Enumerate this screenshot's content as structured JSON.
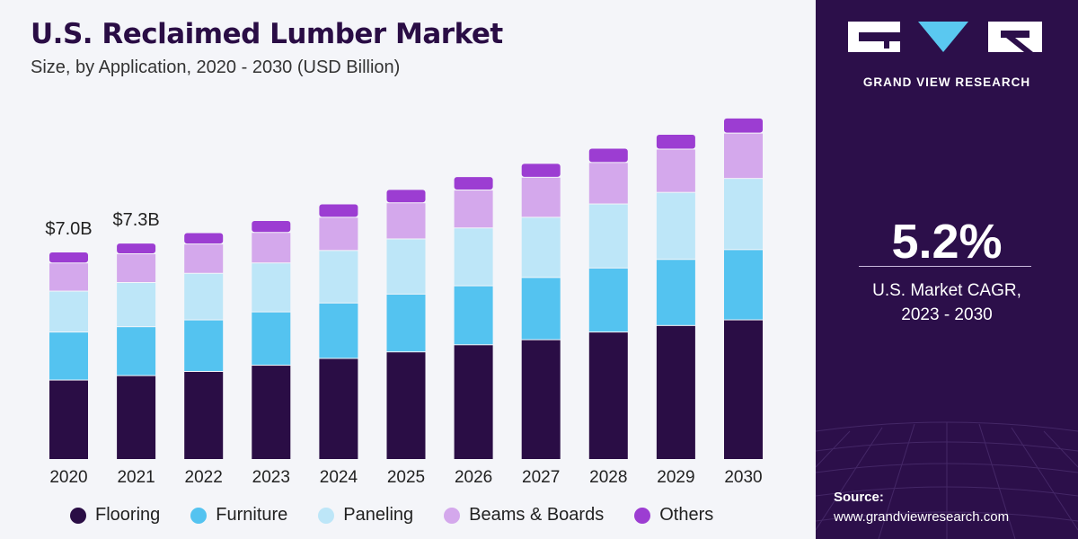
{
  "header": {
    "title": "U.S. Reclaimed Lumber Market",
    "subtitle": "Size, by Application, 2020 - 2030 (USD Billion)"
  },
  "chart_data": {
    "type": "bar",
    "stacked": true,
    "categories": [
      "2020",
      "2021",
      "2022",
      "2023",
      "2024",
      "2025",
      "2026",
      "2027",
      "2028",
      "2029",
      "2030"
    ],
    "series": [
      {
        "name": "Flooring",
        "color": "#2a0d45",
        "values": [
          2.68,
          2.83,
          2.97,
          3.18,
          3.41,
          3.63,
          3.87,
          4.04,
          4.3,
          4.52,
          4.71
        ]
      },
      {
        "name": "Furniture",
        "color": "#54c3f0",
        "values": [
          1.62,
          1.65,
          1.74,
          1.8,
          1.87,
          1.95,
          1.99,
          2.1,
          2.16,
          2.23,
          2.37
        ]
      },
      {
        "name": "Paneling",
        "color": "#bde6f8",
        "values": [
          1.38,
          1.49,
          1.57,
          1.65,
          1.77,
          1.86,
          1.95,
          2.03,
          2.16,
          2.26,
          2.4
        ]
      },
      {
        "name": "Beams & Boards",
        "color": "#d4a8ec",
        "values": [
          0.95,
          0.97,
          0.99,
          1.03,
          1.12,
          1.22,
          1.28,
          1.35,
          1.4,
          1.46,
          1.53
        ]
      },
      {
        "name": "Others",
        "color": "#9c3dd2",
        "values": [
          0.37,
          0.36,
          0.38,
          0.4,
          0.45,
          0.45,
          0.45,
          0.47,
          0.48,
          0.5,
          0.51
        ]
      }
    ],
    "data_labels": [
      {
        "category": "2020",
        "text": "$7.0B"
      },
      {
        "category": "2021",
        "text": "$7.3B"
      }
    ],
    "ylim": [
      0,
      12
    ],
    "grid": false,
    "legend_position": "bottom"
  },
  "sidebar": {
    "brand": "GRAND VIEW RESEARCH",
    "cagr_value": "5.2%",
    "cagr_label_line1": "U.S. Market CAGR,",
    "cagr_label_line2": "2023 - 2030",
    "source_label": "Source:",
    "source_url": "www.grandviewresearch.com"
  },
  "colors": {
    "panel_bg": "#2c0f4a",
    "title": "#2a0d45"
  }
}
